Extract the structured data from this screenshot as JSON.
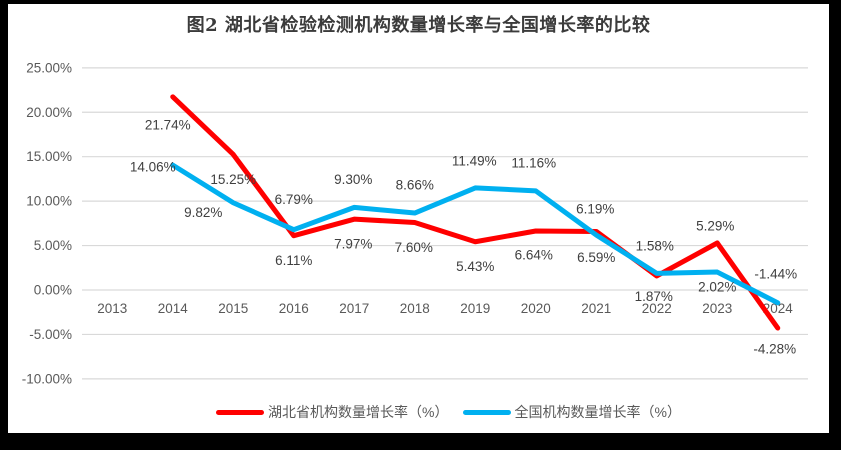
{
  "title": "图2  湖北省检验检测机构数量增长率与全国增长率的比较",
  "colors": {
    "hubei_line": "#FF0000",
    "national_line": "#00B0F0",
    "gridline": "#D9D9D9",
    "axis_text": "#595959",
    "data_label_text": "#404040",
    "title_text": "#3b3b3b",
    "frame_border": "#000000"
  },
  "chart_data": {
    "type": "line",
    "categories": [
      "2013",
      "2014",
      "2015",
      "2016",
      "2017",
      "2018",
      "2019",
      "2020",
      "2021",
      "2022",
      "2023",
      "2024"
    ],
    "series": [
      {
        "name": "湖北省机构数量增长率（%）",
        "color": "#FF0000",
        "values": [
          null,
          21.74,
          15.25,
          6.11,
          7.97,
          7.6,
          5.43,
          6.64,
          6.59,
          1.58,
          5.29,
          -4.28
        ],
        "labels": [
          null,
          "21.74%",
          "15.25%",
          "6.11%",
          "7.97%",
          "7.60%",
          "5.43%",
          "6.64%",
          "6.59%",
          "1.58%",
          "5.29%",
          "-4.28%"
        ]
      },
      {
        "name": "全国机构数量增长率（%）",
        "color": "#00B0F0",
        "values": [
          null,
          14.06,
          9.82,
          6.79,
          9.3,
          8.66,
          11.49,
          11.16,
          6.19,
          1.87,
          2.02,
          -1.44
        ],
        "labels": [
          null,
          "14.06%",
          "9.82%",
          "6.79%",
          "9.30%",
          "8.66%",
          "11.49%",
          "11.16%",
          "6.19%",
          "1.87%",
          "2.02%",
          "-1.44%"
        ]
      }
    ],
    "y_ticks": [
      {
        "label": "25.00%",
        "value": 25
      },
      {
        "label": "20.00%",
        "value": 20
      },
      {
        "label": "15.00%",
        "value": 15
      },
      {
        "label": "10.00%",
        "value": 10
      },
      {
        "label": "5.00%",
        "value": 5
      },
      {
        "label": "0.00%",
        "value": 0
      },
      {
        "label": "-5.00%",
        "value": -5
      },
      {
        "label": "-10.00%",
        "value": -10
      }
    ],
    "ylim": [
      -10,
      25
    ],
    "grid": true,
    "legend_position": "bottom"
  }
}
